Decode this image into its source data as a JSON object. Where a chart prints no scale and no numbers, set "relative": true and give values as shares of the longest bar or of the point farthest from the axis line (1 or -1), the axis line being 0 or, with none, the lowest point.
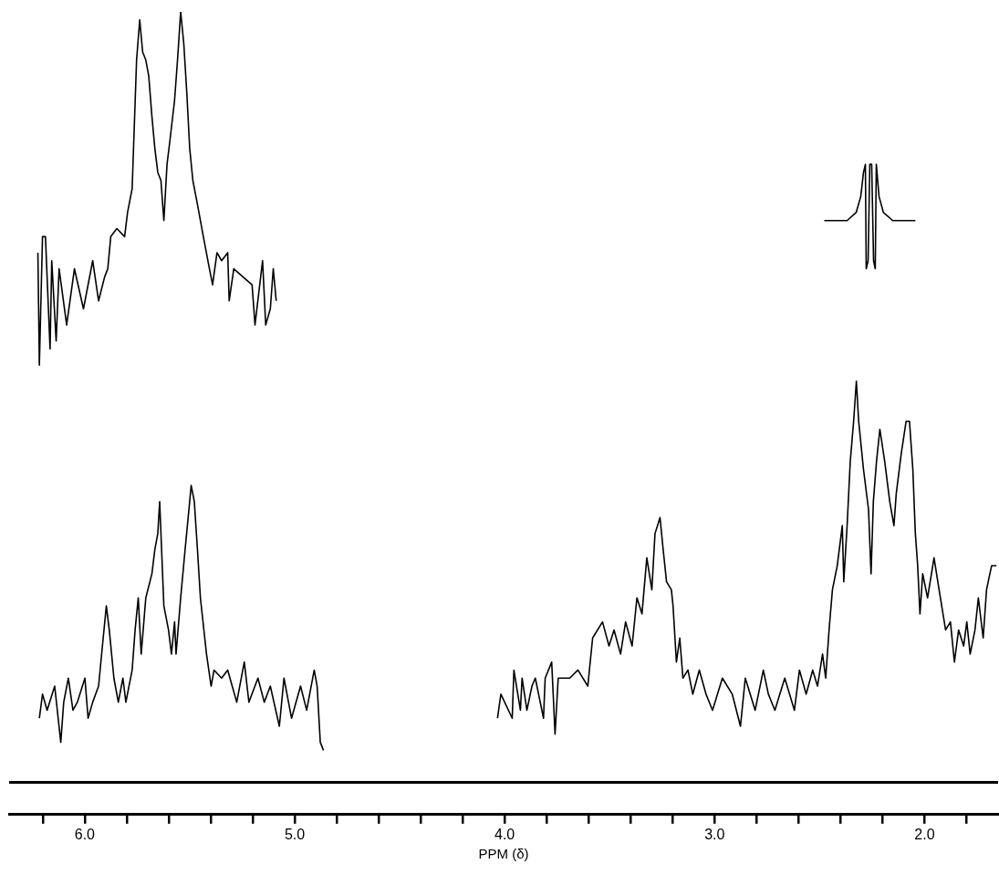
{
  "chart_data": {
    "type": "line",
    "relative": true,
    "xlabel": "PPM (δ)",
    "legend": false,
    "grid": false,
    "tick_labels": "x",
    "xlim": [
      6.36,
      1.65
    ],
    "xticks": [
      {
        "value": 6.2,
        "label": null
      },
      {
        "value": 6,
        "label": "6.0"
      },
      {
        "value": 5.8,
        "label": null
      },
      {
        "value": 5.6,
        "label": null
      },
      {
        "value": 5.4,
        "label": null
      },
      {
        "value": 5.2,
        "label": null
      },
      {
        "value": 5,
        "label": "5.0"
      },
      {
        "value": 4.8,
        "label": null
      },
      {
        "value": 4.6,
        "label": null
      },
      {
        "value": 4.4,
        "label": null
      },
      {
        "value": 4.2,
        "label": null
      },
      {
        "value": 4,
        "label": "4.0"
      },
      {
        "value": 3.8,
        "label": null
      },
      {
        "value": 3.6,
        "label": null
      },
      {
        "value": 3.4,
        "label": null
      },
      {
        "value": 3.2,
        "label": null
      },
      {
        "value": 3,
        "label": "3.0"
      },
      {
        "value": 2.8,
        "label": null
      },
      {
        "value": 2.6,
        "label": null
      },
      {
        "value": 2.4,
        "label": null
      },
      {
        "value": 2.2,
        "label": null
      },
      {
        "value": 2,
        "label": "2.0"
      },
      {
        "value": 1.8,
        "label": null
      }
    ],
    "series": [
      {
        "color": "#000000",
        "x": [
          6.223,
          6.216,
          6.201,
          6.187,
          6.165,
          6.157,
          6.136,
          6.122,
          6.086,
          6.049,
          6.006,
          5.962,
          5.934,
          5.905,
          5.89,
          5.876,
          5.847,
          5.81,
          5.796,
          5.774,
          5.753,
          5.738,
          5.724,
          5.709,
          5.695,
          5.68,
          5.666,
          5.652,
          5.637,
          5.623,
          5.608,
          5.594,
          5.572,
          5.558,
          5.543,
          5.528,
          5.514,
          5.5,
          5.485,
          5.463,
          5.435,
          5.406,
          5.391,
          5.37,
          5.348,
          5.319,
          5.312,
          5.29,
          5.247,
          5.203,
          5.189,
          5.153,
          5.138,
          5.116,
          5.102,
          5.088
        ],
        "values": [
          0.7,
          0.56,
          0.72,
          0.72,
          0.58,
          0.69,
          0.59,
          0.68,
          0.61,
          0.68,
          0.63,
          0.69,
          0.64,
          0.67,
          0.68,
          0.72,
          0.73,
          0.72,
          0.75,
          0.78,
          0.94,
          0.99,
          0.95,
          0.94,
          0.92,
          0.87,
          0.83,
          0.8,
          0.79,
          0.74,
          0.81,
          0.84,
          0.89,
          0.94,
          1.0,
          0.96,
          0.9,
          0.83,
          0.79,
          0.76,
          0.72,
          0.68,
          0.66,
          0.7,
          0.69,
          0.7,
          0.64,
          0.68,
          0.67,
          0.66,
          0.61,
          0.69,
          0.61,
          0.63,
          0.68,
          0.64
        ]
      },
      {
        "color": "#000000",
        "x": [
          6.216,
          6.201,
          6.179,
          6.143,
          6.114,
          6.1,
          6.078,
          6.056,
          6.035,
          5.999,
          5.984,
          5.962,
          5.934,
          5.912,
          5.897,
          5.883,
          5.861,
          5.84,
          5.818,
          5.804,
          5.774,
          5.76,
          5.745,
          5.731,
          5.709,
          5.68,
          5.666,
          5.652,
          5.643,
          5.623,
          5.601,
          5.587,
          5.572,
          5.565,
          5.543,
          5.522,
          5.5,
          5.493,
          5.478,
          5.463,
          5.449,
          5.42,
          5.398,
          5.384,
          5.348,
          5.319,
          5.276,
          5.24,
          5.218,
          5.175,
          5.145,
          5.116,
          5.073,
          5.051,
          5.015,
          4.972,
          4.943,
          4.907,
          4.893,
          4.878,
          4.863
        ],
        "values": [
          0.12,
          0.15,
          0.13,
          0.16,
          0.09,
          0.14,
          0.17,
          0.13,
          0.14,
          0.17,
          0.12,
          0.14,
          0.16,
          0.22,
          0.26,
          0.23,
          0.17,
          0.14,
          0.17,
          0.14,
          0.18,
          0.23,
          0.27,
          0.2,
          0.27,
          0.3,
          0.33,
          0.35,
          0.39,
          0.26,
          0.23,
          0.2,
          0.24,
          0.2,
          0.27,
          0.33,
          0.39,
          0.41,
          0.39,
          0.33,
          0.27,
          0.2,
          0.16,
          0.18,
          0.17,
          0.18,
          0.14,
          0.19,
          0.14,
          0.17,
          0.14,
          0.16,
          0.11,
          0.17,
          0.12,
          0.16,
          0.13,
          0.18,
          0.16,
          0.09,
          0.08
        ]
      },
      {
        "color": "#000000",
        "x": [
          4.034,
          4.018,
          3.964,
          3.956,
          3.925,
          3.917,
          3.894,
          3.87,
          3.854,
          3.815,
          3.807,
          3.776,
          3.76,
          3.745,
          3.69,
          3.651,
          3.604,
          3.581,
          3.534,
          3.503,
          3.479,
          3.448,
          3.424,
          3.393,
          3.37,
          3.346,
          3.323,
          3.299,
          3.284,
          3.26,
          3.245,
          3.229,
          3.206,
          3.198,
          3.182,
          3.166,
          3.151,
          3.127,
          3.104,
          3.073,
          3.041,
          3.01,
          2.963,
          2.916,
          2.877,
          2.854,
          2.807,
          2.768,
          2.744,
          2.713,
          2.666,
          2.62,
          2.596,
          2.564,
          2.533,
          2.51,
          2.486,
          2.471,
          2.455,
          2.439,
          2.416,
          2.392,
          2.385,
          2.369,
          2.354,
          2.338,
          2.325,
          2.314,
          2.291,
          2.267,
          2.255,
          2.244,
          2.229,
          2.213,
          2.19,
          2.166,
          2.146,
          2.135,
          2.111,
          2.088,
          2.072,
          2.056,
          2.044,
          2.033,
          2.022,
          2.009,
          1.986,
          1.955,
          1.931,
          1.9,
          1.877,
          1.858,
          1.838,
          1.814,
          1.799,
          1.783,
          1.76,
          1.744,
          1.721,
          1.705,
          1.681,
          1.658
        ],
        "values": [
          0.12,
          0.15,
          0.12,
          0.18,
          0.13,
          0.17,
          0.13,
          0.16,
          0.17,
          0.12,
          0.17,
          0.19,
          0.1,
          0.17,
          0.17,
          0.18,
          0.16,
          0.22,
          0.24,
          0.21,
          0.23,
          0.2,
          0.24,
          0.21,
          0.27,
          0.25,
          0.32,
          0.28,
          0.35,
          0.37,
          0.33,
          0.29,
          0.28,
          0.26,
          0.19,
          0.22,
          0.17,
          0.18,
          0.15,
          0.18,
          0.15,
          0.13,
          0.17,
          0.15,
          0.11,
          0.17,
          0.13,
          0.18,
          0.15,
          0.13,
          0.17,
          0.13,
          0.18,
          0.15,
          0.18,
          0.16,
          0.2,
          0.17,
          0.23,
          0.28,
          0.31,
          0.36,
          0.29,
          0.36,
          0.44,
          0.49,
          0.54,
          0.49,
          0.43,
          0.38,
          0.3,
          0.39,
          0.44,
          0.48,
          0.44,
          0.39,
          0.36,
          0.4,
          0.45,
          0.49,
          0.49,
          0.43,
          0.35,
          0.31,
          0.25,
          0.3,
          0.27,
          0.32,
          0.28,
          0.23,
          0.24,
          0.19,
          0.23,
          0.21,
          0.24,
          0.2,
          0.23,
          0.27,
          0.22,
          0.28,
          0.31,
          0.31
        ]
      },
      {
        "color": "#000000",
        "x": [
          2.478,
          2.369,
          2.326,
          2.304,
          2.291,
          2.282,
          2.278,
          2.269,
          2.261,
          2.252,
          2.243,
          2.235,
          2.23,
          2.217,
          2.196,
          2.152,
          2.044
        ],
        "values": [
          0.74,
          0.74,
          0.75,
          0.77,
          0.8,
          0.81,
          0.68,
          0.69,
          0.81,
          0.81,
          0.69,
          0.68,
          0.81,
          0.77,
          0.75,
          0.74,
          0.74
        ]
      }
    ]
  }
}
